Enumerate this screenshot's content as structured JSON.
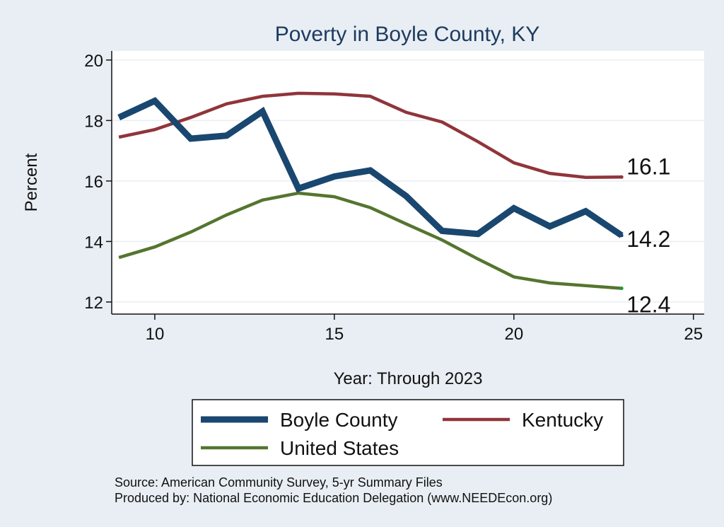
{
  "chart_data": {
    "type": "line",
    "title": "Poverty in Boyle County, KY",
    "xlabel": "Year: Through 2023",
    "ylabel": "Percent",
    "xlim": [
      8.8,
      25.3
    ],
    "ylim": [
      11.6,
      20.3
    ],
    "xticks": [
      "10",
      "15",
      "20",
      "25"
    ],
    "yticks": [
      "12",
      "14",
      "16",
      "18",
      "20"
    ],
    "grid": "horizontal",
    "legend_position": "bottom",
    "x": [
      9,
      10,
      11,
      12,
      13,
      14,
      15,
      16,
      17,
      18,
      19,
      20,
      21,
      22,
      23
    ],
    "series": [
      {
        "name": "Boyle County",
        "color": "#1a476f",
        "values": [
          18.1,
          18.65,
          17.4,
          17.5,
          18.3,
          15.75,
          16.15,
          16.35,
          15.5,
          14.35,
          14.25,
          15.1,
          14.5,
          15.0,
          14.2
        ],
        "end_label": "14.2"
      },
      {
        "name": "Kentucky",
        "color": "#90353b",
        "values": [
          17.45,
          17.7,
          18.1,
          18.55,
          18.8,
          18.9,
          18.88,
          18.8,
          18.27,
          17.95,
          17.3,
          16.6,
          16.25,
          16.12,
          16.13
        ],
        "end_label": "16.1"
      },
      {
        "name": "United States",
        "color": "#55752f",
        "values": [
          13.47,
          13.82,
          14.31,
          14.88,
          15.37,
          15.6,
          15.48,
          15.12,
          14.58,
          14.05,
          13.42,
          12.83,
          12.63,
          12.54,
          12.45
        ],
        "end_label": "12.4"
      }
    ]
  },
  "source": {
    "line1": "Source: American Community Survey, 5-yr Summary Files",
    "line2": "Produced by: National Economic Education Delegation (www.NEEDEcon.org)"
  }
}
